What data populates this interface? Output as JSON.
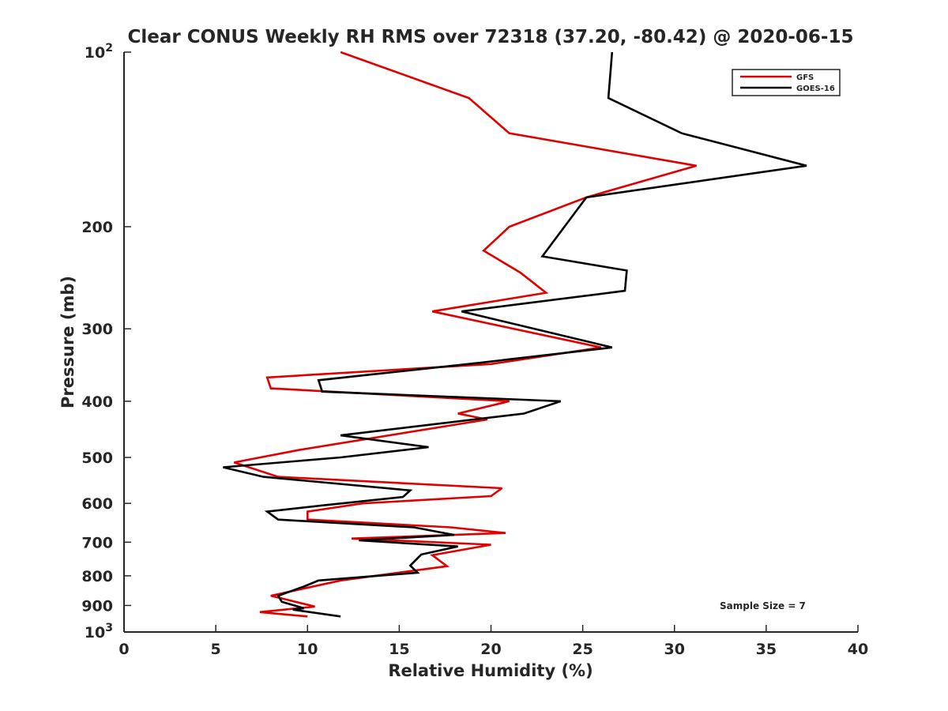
{
  "chart_data": {
    "type": "line",
    "title": "Clear CONUS Weekly RH RMS over 72318 (37.20, -80.42) @ 2020-06-15",
    "xlabel": "Relative Humidity (%)",
    "ylabel": "Pressure (mb)",
    "xlim": [
      0,
      40
    ],
    "ylim": [
      100,
      1000
    ],
    "y_scale": "log",
    "y_reversed": true,
    "grid": false,
    "legend_position": "top-right",
    "annotation": "Sample Size = 7",
    "xticks": [
      {
        "value": 0,
        "label": "0"
      },
      {
        "value": 5,
        "label": "5"
      },
      {
        "value": 10,
        "label": "10"
      },
      {
        "value": 15,
        "label": "15"
      },
      {
        "value": 20,
        "label": "20"
      },
      {
        "value": 25,
        "label": "25"
      },
      {
        "value": 30,
        "label": "30"
      },
      {
        "value": 35,
        "label": "35"
      },
      {
        "value": 40,
        "label": "40"
      }
    ],
    "yticks": [
      {
        "value": 100,
        "label": "10",
        "sup": "2"
      },
      {
        "value": 200,
        "label": "200"
      },
      {
        "value": 300,
        "label": "300"
      },
      {
        "value": 400,
        "label": "400"
      },
      {
        "value": 500,
        "label": "500"
      },
      {
        "value": 600,
        "label": "600"
      },
      {
        "value": 700,
        "label": "700"
      },
      {
        "value": 800,
        "label": "800"
      },
      {
        "value": 900,
        "label": "900"
      },
      {
        "value": 1000,
        "label": "10",
        "sup": "3"
      }
    ],
    "series": [
      {
        "name": "GFS",
        "color": "#e00000",
        "x": [
          11.8,
          18.8,
          21.0,
          31.2,
          25.2,
          21.0,
          19.6,
          21.6,
          23.0,
          16.8,
          26.0,
          20.0,
          7.8,
          8.0,
          21.0,
          18.2,
          19.8,
          9.6,
          6.0,
          8.4,
          20.6,
          20.0,
          13.0,
          10.0,
          10.0,
          17.8,
          20.8,
          12.4,
          20.0,
          16.8,
          17.6,
          11.8,
          8.0,
          10.4,
          7.4,
          10.0
        ],
        "y": [
          100,
          120,
          138,
          157,
          178,
          200,
          220,
          240,
          260,
          280,
          323,
          345,
          364,
          380,
          400,
          420,
          430,
          485,
          510,
          540,
          565,
          583,
          600,
          620,
          640,
          660,
          675,
          690,
          707,
          737,
          770,
          815,
          866,
          904,
          924,
          940
        ]
      },
      {
        "name": "GOES-16",
        "color": "#000000",
        "x": [
          26.6,
          26.4,
          30.4,
          37.2,
          25.2,
          22.8,
          27.4,
          27.3,
          18.4,
          26.6,
          19.5,
          10.6,
          10.8,
          23.8,
          21.8,
          11.8,
          16.6,
          11.8,
          5.4,
          7.6,
          15.6,
          15.2,
          10.8,
          7.8,
          8.4,
          15.8,
          18.0,
          12.8,
          18.2,
          16.2,
          15.6,
          16.0,
          10.6,
          9.8,
          8.4,
          8.6,
          9.8,
          9.2,
          11.8
        ],
        "y": [
          100,
          120,
          138,
          157,
          178,
          225,
          238,
          258,
          280,
          323,
          343,
          368,
          385,
          400,
          420,
          458,
          480,
          500,
          520,
          540,
          570,
          585,
          605,
          620,
          640,
          660,
          680,
          695,
          712,
          735,
          768,
          790,
          815,
          835,
          866,
          887,
          910,
          915,
          940
        ]
      }
    ]
  }
}
